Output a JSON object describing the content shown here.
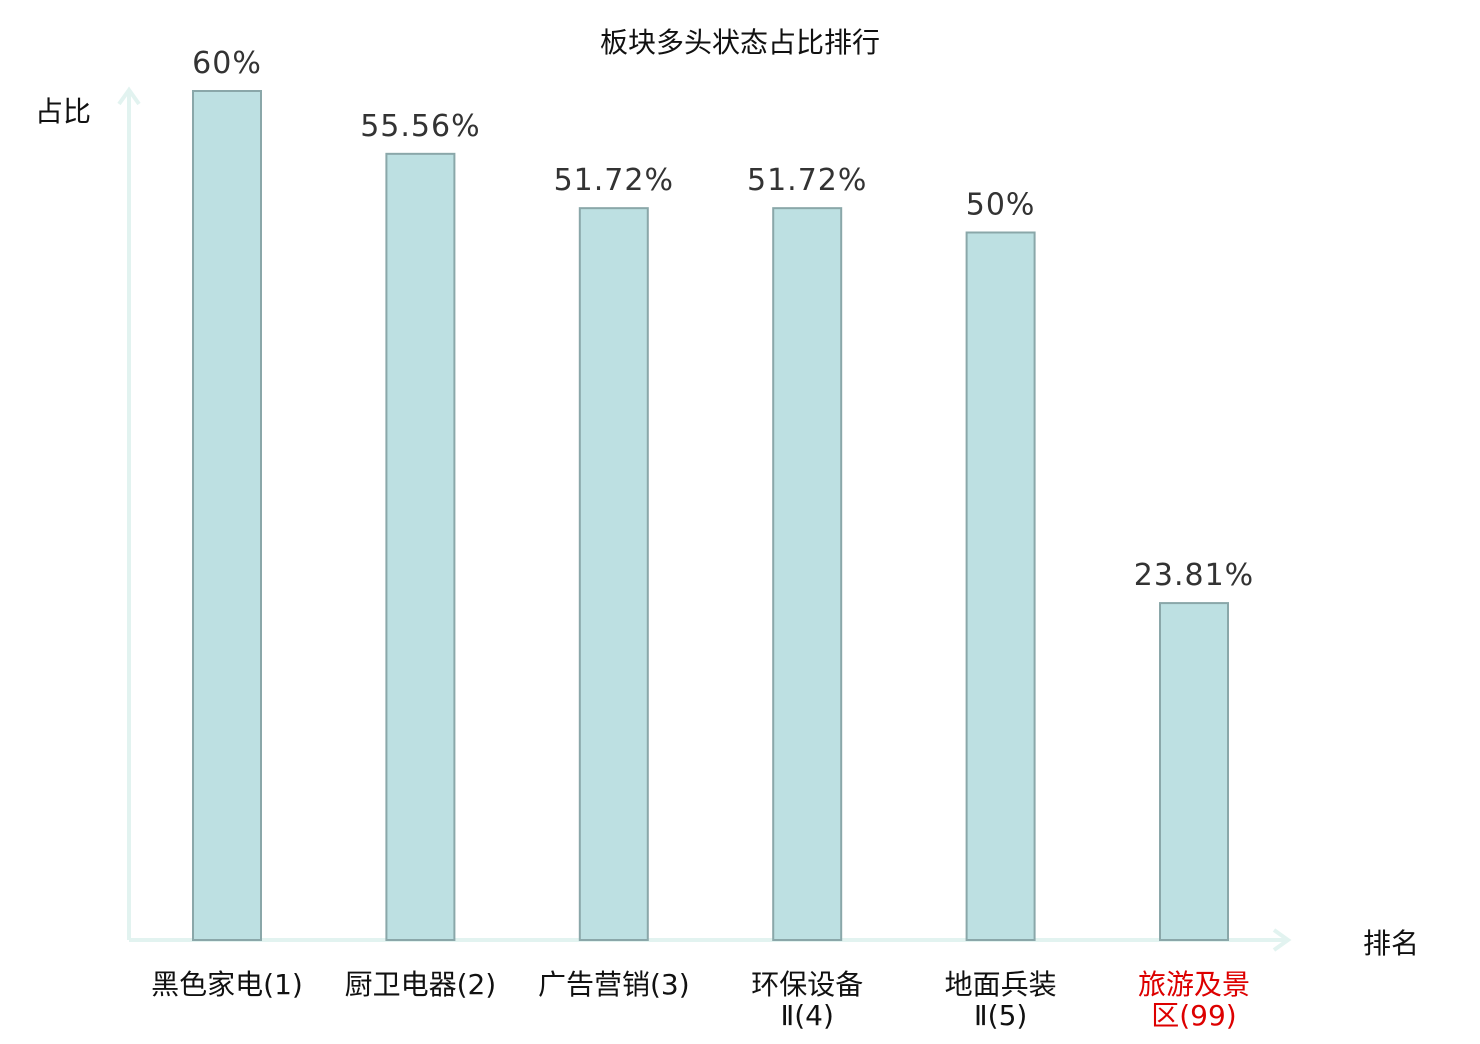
{
  "chart_data": {
    "type": "bar",
    "title": "板块多头状态占比排行",
    "ylabel": "占比",
    "xlabel": "排名",
    "grid": false,
    "ylim": [
      0,
      60
    ],
    "value_suffix": "%",
    "categories": [
      {
        "lines": [
          "黑色家电(1)"
        ],
        "highlight": false
      },
      {
        "lines": [
          "厨卫电器(2)"
        ],
        "highlight": false
      },
      {
        "lines": [
          "广告营销(3)"
        ],
        "highlight": false
      },
      {
        "lines": [
          "环保设备",
          "Ⅱ(4)"
        ],
        "highlight": false
      },
      {
        "lines": [
          "地面兵装",
          "Ⅱ(5)"
        ],
        "highlight": false
      },
      {
        "lines": [
          "旅游及景",
          "区(99)"
        ],
        "highlight": true
      }
    ],
    "values": [
      60,
      55.56,
      51.72,
      51.72,
      50,
      23.81
    ],
    "value_labels": [
      "60%",
      "55.56%",
      "51.72%",
      "51.72%",
      "50%",
      "23.81%"
    ]
  },
  "colors": {
    "bar_fill": "#bde0e2",
    "bar_stroke": "#8aa7a9",
    "axis": "#e2f3f0",
    "text": "#333333",
    "label": "#111111",
    "highlight": "#dd0000"
  }
}
